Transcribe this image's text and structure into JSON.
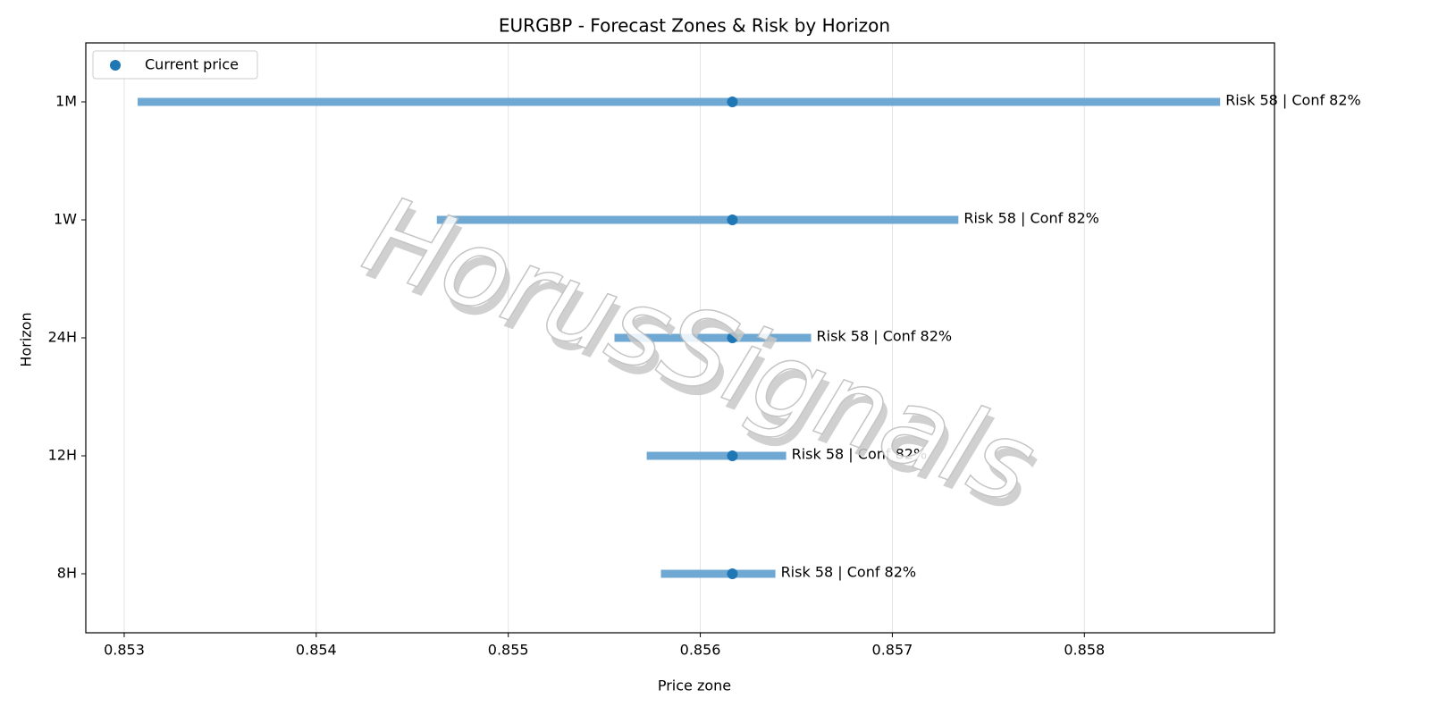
{
  "chart_data": {
    "type": "range",
    "title": "EURGBP - Forecast Zones & Risk by Horizon",
    "xlabel": "Price zone",
    "ylabel": "Horizon",
    "categories": [
      "8H",
      "12H",
      "24H",
      "1W",
      "1M"
    ],
    "low": [
      0.855795,
      0.855721,
      0.855553,
      0.854628,
      0.85307
    ],
    "high": [
      0.856391,
      0.856447,
      0.856577,
      0.857344,
      0.858707
    ],
    "color": "#6fa8d2",
    "current": {
      "name": "Current price",
      "color": "#1f77b4",
      "values": [
        0.856167,
        0.856167,
        0.856167,
        0.856167,
        0.856167
      ]
    },
    "labels": [
      "Risk 58 | Conf 82%",
      "Risk 58 | Conf 82%",
      "Risk 58 | Conf 82%",
      "Risk 58 | Conf 82%",
      "Risk 58 | Conf 82%"
    ],
    "xlim": [
      0.8528,
      0.85899
    ],
    "xticks": [
      0.853,
      0.854,
      0.855,
      0.856,
      0.857,
      0.858
    ],
    "grid": true,
    "legend": "upper left",
    "watermark": "HorusSignals"
  }
}
